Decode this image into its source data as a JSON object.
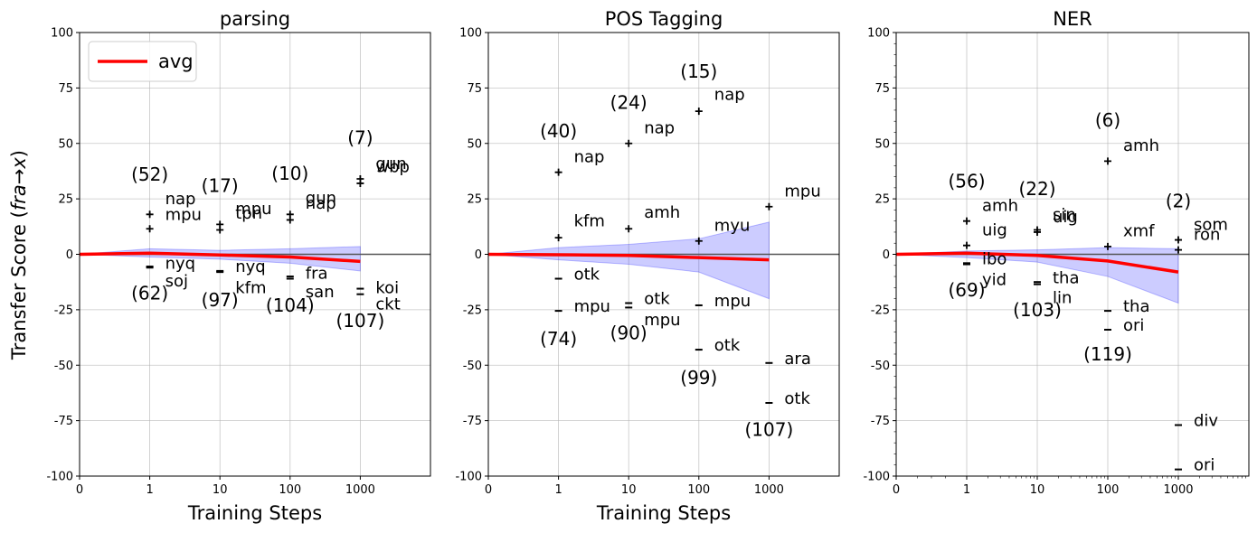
{
  "figure": {
    "ylabel": "Transfer Score (fra→x)",
    "ylabel_prefix": "Transfer Score (",
    "ylabel_italic": "fra→x",
    "ylabel_suffix": ")",
    "legend_label": "avg"
  },
  "colors": {
    "avg_line": "#ff0000",
    "band_fill": "#0000ff",
    "markers": "#000000",
    "zero_line": "#555555"
  },
  "chart_data": [
    {
      "type": "line",
      "title": "parsing",
      "xlabel": "Training Steps",
      "ylim": [
        -100,
        100
      ],
      "yticks": [
        -100,
        -75,
        -50,
        -25,
        0,
        25,
        50,
        75,
        100
      ],
      "xticks": [
        "0",
        "1",
        "10",
        "100",
        "1000"
      ],
      "legend": "top-left",
      "avg": [
        {
          "x": 0,
          "y": 0
        },
        {
          "x": 1,
          "y": 0.5
        },
        {
          "x": 10,
          "y": -0.3
        },
        {
          "x": 100,
          "y": -1.2
        },
        {
          "x": 1000,
          "y": -3.2
        }
      ],
      "band": [
        {
          "x": 0,
          "lo": 0,
          "hi": 0
        },
        {
          "x": 1,
          "lo": -1.2,
          "hi": 2.5
        },
        {
          "x": 10,
          "lo": -2.2,
          "hi": 1.8
        },
        {
          "x": 100,
          "lo": -4,
          "hi": 2.5
        },
        {
          "x": 1000,
          "lo": -7.5,
          "hi": 3.5
        }
      ],
      "points": [
        {
          "x": 1,
          "y": 18,
          "lang": "nap",
          "ly": 25
        },
        {
          "x": 1,
          "y": 11.5,
          "lang": "mpu",
          "ly": 18
        },
        {
          "x": 1,
          "y": -5.5,
          "lang": "nyq",
          "ly": -4
        },
        {
          "x": 1,
          "y": -6,
          "lang": "soj",
          "ly": -12
        },
        {
          "x": 10,
          "y": 13.5,
          "lang": "mpu",
          "ly": 20.5
        },
        {
          "x": 10,
          "y": 11,
          "lang": "tpn",
          "ly": 18.5
        },
        {
          "x": 10,
          "y": -7.5,
          "lang": "nyq",
          "ly": -5.5
        },
        {
          "x": 10,
          "y": -8,
          "lang": "kfm",
          "ly": -15
        },
        {
          "x": 100,
          "y": 18,
          "lang": "gun",
          "ly": 25.5
        },
        {
          "x": 100,
          "y": 15.5,
          "lang": "nap",
          "ly": 23
        },
        {
          "x": 100,
          "y": -10,
          "lang": "fra",
          "ly": -8.5
        },
        {
          "x": 100,
          "y": -11,
          "lang": "san",
          "ly": -17
        },
        {
          "x": 1000,
          "y": 34,
          "lang": "gun",
          "ly": 41
        },
        {
          "x": 1000,
          "y": 32,
          "lang": "wbp",
          "ly": 39.5
        },
        {
          "x": 1000,
          "y": -15.5,
          "lang": "koi",
          "ly": -15
        },
        {
          "x": 1000,
          "y": -18,
          "lang": "ckt",
          "ly": -22.5
        }
      ],
      "counts": [
        {
          "x": 1,
          "y": 36,
          "text": "(52)"
        },
        {
          "x": 1,
          "y": -17.5,
          "text": "(62)"
        },
        {
          "x": 10,
          "y": 31,
          "text": "(17)"
        },
        {
          "x": 10,
          "y": -20.5,
          "text": "(97)"
        },
        {
          "x": 100,
          "y": 36.5,
          "text": "(10)"
        },
        {
          "x": 100,
          "y": -23,
          "text": "(104)"
        },
        {
          "x": 1000,
          "y": 52.5,
          "text": "(7)"
        },
        {
          "x": 1000,
          "y": -30,
          "text": "(107)"
        }
      ]
    },
    {
      "type": "line",
      "title": "POS Tagging",
      "xlabel": "Training Steps",
      "ylim": [
        -100,
        100
      ],
      "yticks": [
        -100,
        -75,
        -50,
        -25,
        0,
        25,
        50,
        75,
        100
      ],
      "xticks": [
        "0",
        "1",
        "10",
        "100",
        "1000"
      ],
      "avg": [
        {
          "x": 0,
          "y": 0
        },
        {
          "x": 1,
          "y": -0.2
        },
        {
          "x": 10,
          "y": -0.5
        },
        {
          "x": 100,
          "y": -1.5
        },
        {
          "x": 1000,
          "y": -2.5
        }
      ],
      "band": [
        {
          "x": 0,
          "lo": 0,
          "hi": 0
        },
        {
          "x": 1,
          "lo": -2.5,
          "hi": 3
        },
        {
          "x": 10,
          "lo": -4.5,
          "hi": 4.5
        },
        {
          "x": 100,
          "lo": -8,
          "hi": 7
        },
        {
          "x": 1000,
          "lo": -20,
          "hi": 14.5
        }
      ],
      "points": [
        {
          "x": 1,
          "y": 37,
          "lang": "nap",
          "ly": 44
        },
        {
          "x": 1,
          "y": 7.5,
          "lang": "kfm",
          "ly": 15
        },
        {
          "x": 1,
          "y": -11,
          "lang": "otk",
          "ly": -9
        },
        {
          "x": 1,
          "y": -25.5,
          "lang": "mpu",
          "ly": -23.5
        },
        {
          "x": 10,
          "y": 50,
          "lang": "nap",
          "ly": 57
        },
        {
          "x": 10,
          "y": 11.5,
          "lang": "amh",
          "ly": 19
        },
        {
          "x": 10,
          "y": -22,
          "lang": "otk",
          "ly": -20
        },
        {
          "x": 10,
          "y": -24,
          "lang": "mpu",
          "ly": -29.5
        },
        {
          "x": 100,
          "y": 64.5,
          "lang": "nap",
          "ly": 72
        },
        {
          "x": 100,
          "y": 6,
          "lang": "myu",
          "ly": 13
        },
        {
          "x": 100,
          "y": -23,
          "lang": "mpu",
          "ly": -21
        },
        {
          "x": 100,
          "y": -43,
          "lang": "otk",
          "ly": -41
        },
        {
          "x": 1000,
          "y": 21.5,
          "lang": "mpu",
          "ly": 28.5
        },
        {
          "x": 1000,
          "y": -49,
          "lang": "ara",
          "ly": -47
        },
        {
          "x": 1000,
          "y": -67,
          "lang": "otk",
          "ly": -65
        }
      ],
      "counts": [
        {
          "x": 1,
          "y": 55.5,
          "text": "(40)"
        },
        {
          "x": 1,
          "y": -38,
          "text": "(74)"
        },
        {
          "x": 10,
          "y": 68.5,
          "text": "(24)"
        },
        {
          "x": 10,
          "y": -35.5,
          "text": "(90)"
        },
        {
          "x": 100,
          "y": 82.5,
          "text": "(15)"
        },
        {
          "x": 100,
          "y": -55.5,
          "text": "(99)"
        },
        {
          "x": 1000,
          "y": -79,
          "text": "(107)"
        }
      ]
    },
    {
      "type": "line",
      "title": "NER",
      "xlabel": "",
      "ylim": [
        -100,
        100
      ],
      "yticks": [
        -100,
        -75,
        -50,
        -25,
        0,
        25,
        50,
        75,
        100
      ],
      "xticks": [
        "0",
        "1",
        "10",
        "100",
        "1000"
      ],
      "avg": [
        {
          "x": 0,
          "y": 0
        },
        {
          "x": 1,
          "y": 0.5
        },
        {
          "x": 10,
          "y": -0.5
        },
        {
          "x": 100,
          "y": -3
        },
        {
          "x": 1000,
          "y": -8
        }
      ],
      "band": [
        {
          "x": 0,
          "lo": 0,
          "hi": 0
        },
        {
          "x": 1,
          "lo": -1.5,
          "hi": 1.5
        },
        {
          "x": 10,
          "lo": -3.5,
          "hi": 2
        },
        {
          "x": 100,
          "lo": -10,
          "hi": 3
        },
        {
          "x": 1000,
          "lo": -22,
          "hi": 2.5
        }
      ],
      "points": [
        {
          "x": 1,
          "y": 15,
          "lang": "amh",
          "ly": 22
        },
        {
          "x": 1,
          "y": 4,
          "lang": "uig",
          "ly": 11
        },
        {
          "x": 1,
          "y": -4,
          "lang": "ibo",
          "ly": -2
        },
        {
          "x": 1,
          "y": -4.5,
          "lang": "yid",
          "ly": -11.5
        },
        {
          "x": 10,
          "y": 11,
          "lang": "sin",
          "ly": 18
        },
        {
          "x": 10,
          "y": 10,
          "lang": "uig",
          "ly": 17
        },
        {
          "x": 10,
          "y": -12.5,
          "lang": "tha",
          "ly": -10.5
        },
        {
          "x": 10,
          "y": -13.5,
          "lang": "lin",
          "ly": -19.5
        },
        {
          "x": 100,
          "y": 42,
          "lang": "amh",
          "ly": 49
        },
        {
          "x": 100,
          "y": 3.5,
          "lang": "xmf",
          "ly": 10.5
        },
        {
          "x": 100,
          "y": -25.5,
          "lang": "tha",
          "ly": -23.5
        },
        {
          "x": 100,
          "y": -34,
          "lang": "ori",
          "ly": -32
        },
        {
          "x": 1000,
          "y": 6.5,
          "lang": "som",
          "ly": 13.5
        },
        {
          "x": 1000,
          "y": 2,
          "lang": "ron",
          "ly": 9
        },
        {
          "x": 1000,
          "y": -77,
          "lang": "div",
          "ly": -75
        },
        {
          "x": 1000,
          "y": -97,
          "lang": "ori",
          "ly": -95
        }
      ],
      "counts": [
        {
          "x": 1,
          "y": 33,
          "text": "(56)"
        },
        {
          "x": 1,
          "y": -16,
          "text": "(69)"
        },
        {
          "x": 10,
          "y": 29.5,
          "text": "(22)"
        },
        {
          "x": 10,
          "y": -25,
          "text": "(103)"
        },
        {
          "x": 100,
          "y": 60.5,
          "text": "(6)"
        },
        {
          "x": 100,
          "y": -45,
          "text": "(119)"
        },
        {
          "x": 1000,
          "y": 24,
          "text": "(2)"
        }
      ]
    }
  ]
}
